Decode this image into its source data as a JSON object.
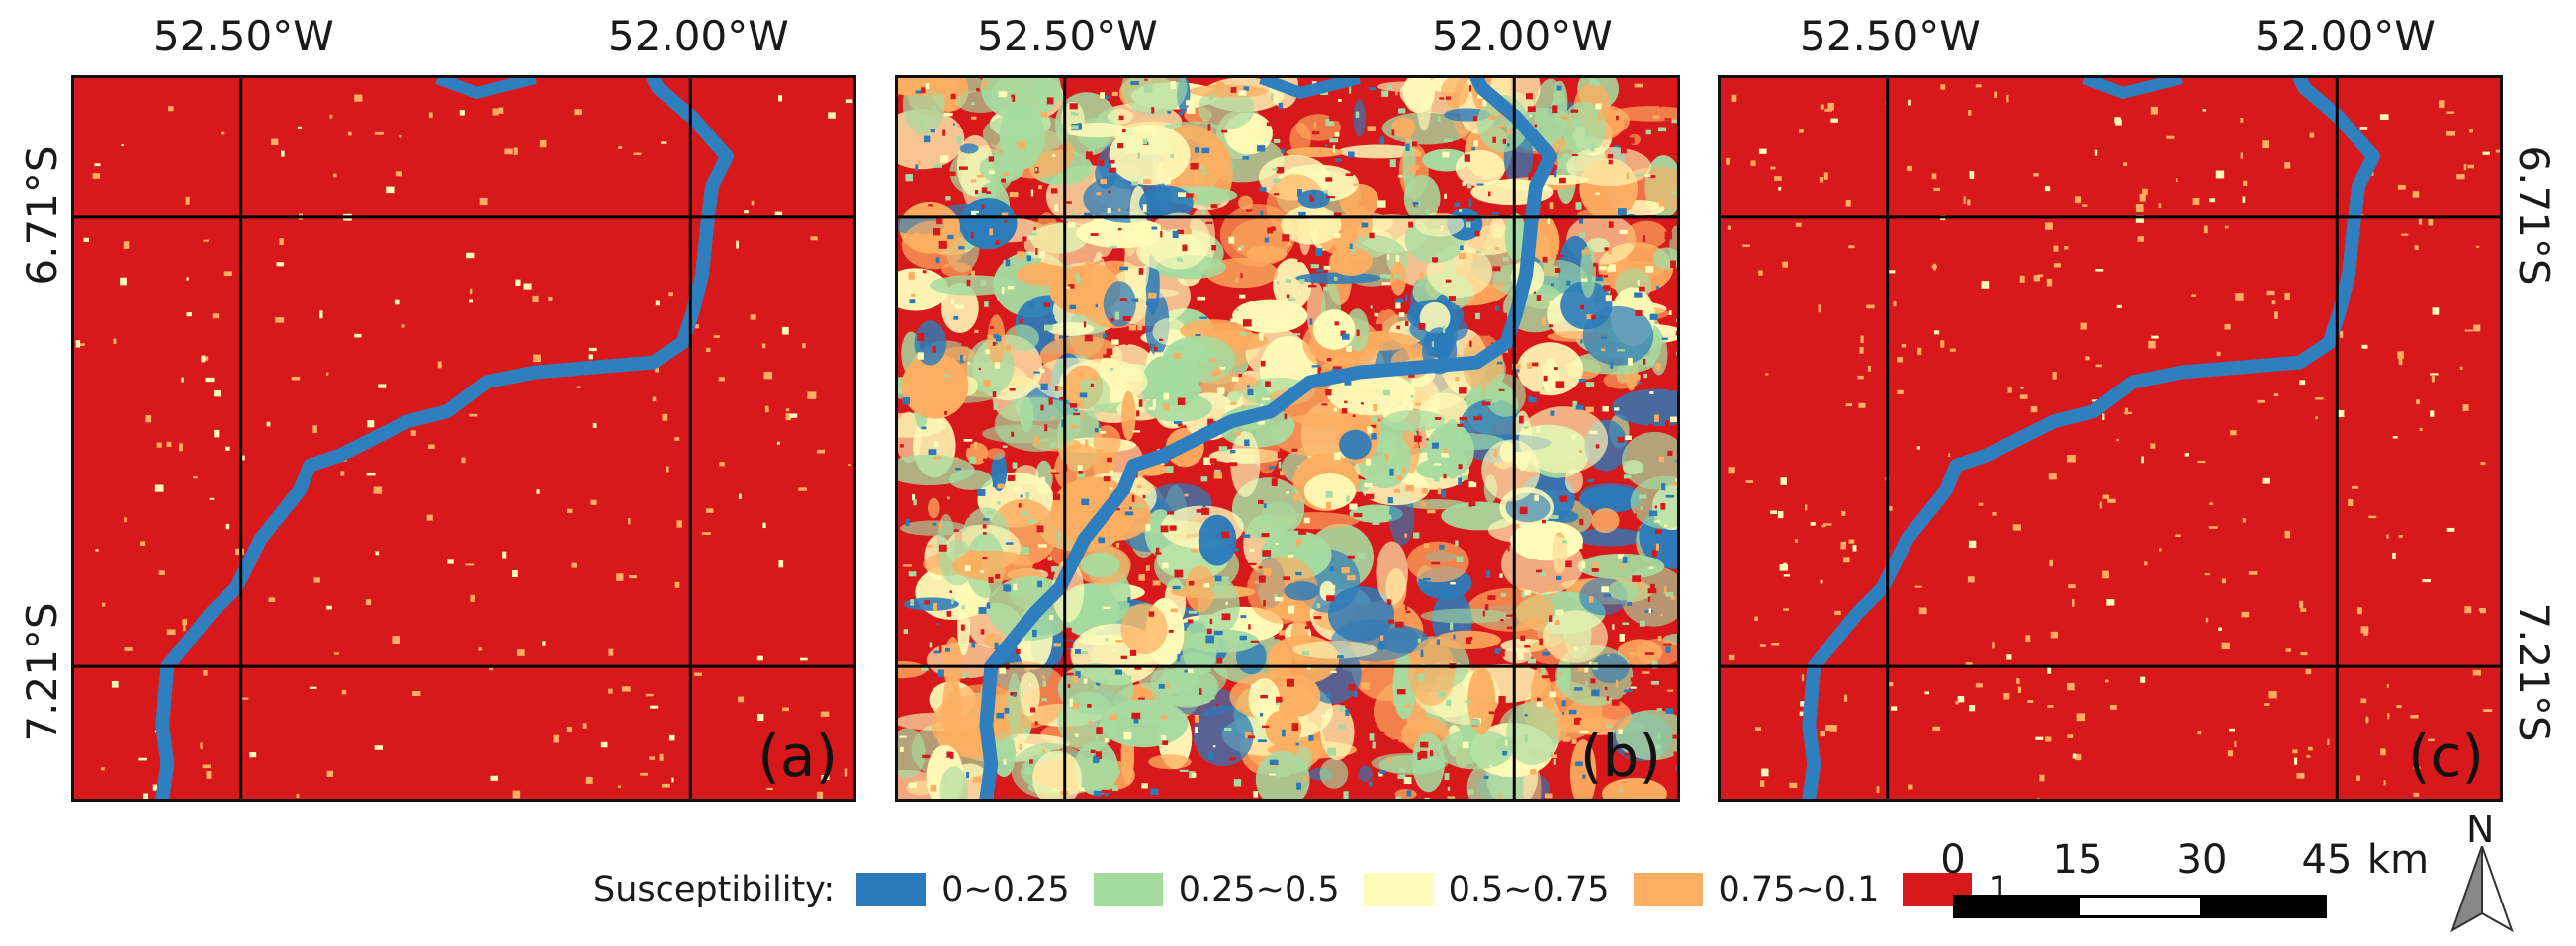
{
  "figure": {
    "longitude_labels": [
      "52.50°W",
      "52.00°W"
    ],
    "latitude_labels": [
      "6.71°S",
      "7.21°S"
    ],
    "panels": [
      {
        "label": "(a)"
      },
      {
        "label": "(b)"
      },
      {
        "label": "(c)"
      }
    ]
  },
  "legend": {
    "title": "Susceptibility:",
    "items": [
      {
        "label": "0~0.25",
        "color": "#2b7bba"
      },
      {
        "label": "0.25~0.5",
        "color": "#a6dba0"
      },
      {
        "label": "0.5~0.75",
        "color": "#fffbb8"
      },
      {
        "label": "0.75~0.1",
        "color": "#fdae61"
      },
      {
        "label": "1",
        "color": "#d7191c"
      }
    ]
  },
  "scale_bar": {
    "ticks": [
      "0",
      "15",
      "30",
      "45"
    ],
    "unit": "km"
  },
  "north_arrow": {
    "label": "N"
  },
  "colors": {
    "river": "#2f7fbf",
    "background_red": "#d7191c",
    "grid": "#000000"
  }
}
